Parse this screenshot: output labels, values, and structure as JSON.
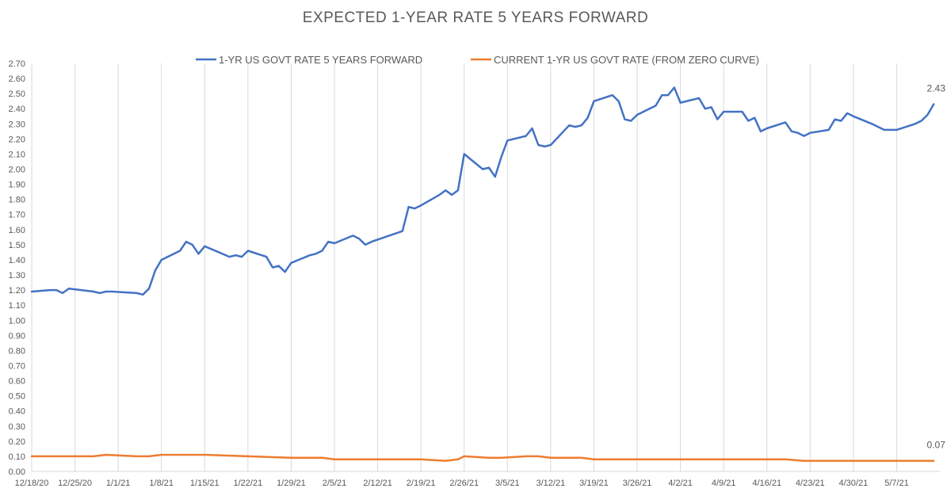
{
  "chart_data": {
    "type": "line",
    "title": "EXPECTED 1-YEAR RATE 5 YEARS FORWARD",
    "xlabel": "",
    "ylabel": "",
    "ylim": [
      0,
      2.7
    ],
    "ytick_step": 0.1,
    "x_range": [
      "2020-12-18",
      "2021-05-14"
    ],
    "grid": "vertical",
    "legend_position": "top",
    "x_tick_labels": [
      "12/18/20",
      "12/25/20",
      "1/1/21",
      "1/8/21",
      "1/15/21",
      "1/22/21",
      "1/29/21",
      "2/5/21",
      "2/12/21",
      "2/19/21",
      "2/26/21",
      "3/5/21",
      "3/12/21",
      "3/19/21",
      "3/26/21",
      "4/2/21",
      "4/9/21",
      "4/16/21",
      "4/23/21",
      "4/30/21",
      "5/7/21"
    ],
    "series": [
      {
        "name": "1-YR US GOVT RATE 5 YEARS FORWARD",
        "color": "#4472C4",
        "end_label": "2.43",
        "points": [
          [
            "2020-12-18",
            1.19
          ],
          [
            "2020-12-21",
            1.2
          ],
          [
            "2020-12-22",
            1.2
          ],
          [
            "2020-12-23",
            1.18
          ],
          [
            "2020-12-24",
            1.21
          ],
          [
            "2020-12-28",
            1.19
          ],
          [
            "2020-12-29",
            1.18
          ],
          [
            "2020-12-30",
            1.19
          ],
          [
            "2020-12-31",
            1.19
          ],
          [
            "2021-01-04",
            1.18
          ],
          [
            "2021-01-05",
            1.17
          ],
          [
            "2021-01-06",
            1.21
          ],
          [
            "2021-01-07",
            1.33
          ],
          [
            "2021-01-08",
            1.4
          ],
          [
            "2021-01-11",
            1.46
          ],
          [
            "2021-01-12",
            1.52
          ],
          [
            "2021-01-13",
            1.5
          ],
          [
            "2021-01-14",
            1.44
          ],
          [
            "2021-01-15",
            1.49
          ],
          [
            "2021-01-19",
            1.42
          ],
          [
            "2021-01-20",
            1.43
          ],
          [
            "2021-01-21",
            1.42
          ],
          [
            "2021-01-22",
            1.46
          ],
          [
            "2021-01-25",
            1.42
          ],
          [
            "2021-01-26",
            1.35
          ],
          [
            "2021-01-27",
            1.36
          ],
          [
            "2021-01-28",
            1.32
          ],
          [
            "2021-01-29",
            1.38
          ],
          [
            "2021-02-01",
            1.43
          ],
          [
            "2021-02-02",
            1.44
          ],
          [
            "2021-02-03",
            1.46
          ],
          [
            "2021-02-04",
            1.52
          ],
          [
            "2021-02-05",
            1.51
          ],
          [
            "2021-02-08",
            1.56
          ],
          [
            "2021-02-09",
            1.54
          ],
          [
            "2021-02-10",
            1.5
          ],
          [
            "2021-02-11",
            1.52
          ],
          [
            "2021-02-16",
            1.59
          ],
          [
            "2021-02-17",
            1.75
          ],
          [
            "2021-02-18",
            1.74
          ],
          [
            "2021-02-19",
            1.76
          ],
          [
            "2021-02-22",
            1.83
          ],
          [
            "2021-02-23",
            1.86
          ],
          [
            "2021-02-24",
            1.83
          ],
          [
            "2021-02-25",
            1.86
          ],
          [
            "2021-02-26",
            2.1
          ],
          [
            "2021-03-01",
            2.0
          ],
          [
            "2021-03-02",
            2.01
          ],
          [
            "2021-03-03",
            1.95
          ],
          [
            "2021-03-04",
            2.08
          ],
          [
            "2021-03-05",
            2.19
          ],
          [
            "2021-03-08",
            2.22
          ],
          [
            "2021-03-09",
            2.27
          ],
          [
            "2021-03-10",
            2.16
          ],
          [
            "2021-03-11",
            2.15
          ],
          [
            "2021-03-12",
            2.16
          ],
          [
            "2021-03-15",
            2.29
          ],
          [
            "2021-03-16",
            2.28
          ],
          [
            "2021-03-17",
            2.29
          ],
          [
            "2021-03-18",
            2.34
          ],
          [
            "2021-03-19",
            2.45
          ],
          [
            "2021-03-22",
            2.49
          ],
          [
            "2021-03-23",
            2.45
          ],
          [
            "2021-03-24",
            2.33
          ],
          [
            "2021-03-25",
            2.32
          ],
          [
            "2021-03-26",
            2.36
          ],
          [
            "2021-03-29",
            2.42
          ],
          [
            "2021-03-30",
            2.49
          ],
          [
            "2021-03-31",
            2.49
          ],
          [
            "2021-04-01",
            2.54
          ],
          [
            "2021-04-02",
            2.44
          ],
          [
            "2021-04-05",
            2.47
          ],
          [
            "2021-04-06",
            2.4
          ],
          [
            "2021-04-07",
            2.41
          ],
          [
            "2021-04-08",
            2.33
          ],
          [
            "2021-04-09",
            2.38
          ],
          [
            "2021-04-12",
            2.38
          ],
          [
            "2021-04-13",
            2.32
          ],
          [
            "2021-04-14",
            2.34
          ],
          [
            "2021-04-15",
            2.25
          ],
          [
            "2021-04-16",
            2.27
          ],
          [
            "2021-04-19",
            2.31
          ],
          [
            "2021-04-20",
            2.25
          ],
          [
            "2021-04-21",
            2.24
          ],
          [
            "2021-04-22",
            2.22
          ],
          [
            "2021-04-23",
            2.24
          ],
          [
            "2021-04-26",
            2.26
          ],
          [
            "2021-04-27",
            2.33
          ],
          [
            "2021-04-28",
            2.32
          ],
          [
            "2021-04-29",
            2.37
          ],
          [
            "2021-04-30",
            2.35
          ],
          [
            "2021-05-03",
            2.3
          ],
          [
            "2021-05-04",
            2.28
          ],
          [
            "2021-05-05",
            2.26
          ],
          [
            "2021-05-06",
            2.26
          ],
          [
            "2021-05-07",
            2.26
          ],
          [
            "2021-05-10",
            2.3
          ],
          [
            "2021-05-11",
            2.32
          ],
          [
            "2021-05-12",
            2.36
          ],
          [
            "2021-05-13",
            2.43
          ]
        ]
      },
      {
        "name": "CURRENT 1-YR US GOVT RATE (FROM ZERO CURVE)",
        "color": "#ED7D31",
        "end_label": "0.07",
        "points": [
          [
            "2020-12-18",
            0.1
          ],
          [
            "2020-12-21",
            0.1
          ],
          [
            "2020-12-23",
            0.1
          ],
          [
            "2020-12-28",
            0.1
          ],
          [
            "2020-12-30",
            0.11
          ],
          [
            "2021-01-04",
            0.1
          ],
          [
            "2021-01-06",
            0.1
          ],
          [
            "2021-01-08",
            0.11
          ],
          [
            "2021-01-12",
            0.11
          ],
          [
            "2021-01-15",
            0.11
          ],
          [
            "2021-01-22",
            0.1
          ],
          [
            "2021-01-29",
            0.09
          ],
          [
            "2021-02-03",
            0.09
          ],
          [
            "2021-02-05",
            0.08
          ],
          [
            "2021-02-10",
            0.08
          ],
          [
            "2021-02-16",
            0.08
          ],
          [
            "2021-02-19",
            0.08
          ],
          [
            "2021-02-23",
            0.07
          ],
          [
            "2021-02-25",
            0.08
          ],
          [
            "2021-02-26",
            0.1
          ],
          [
            "2021-03-02",
            0.09
          ],
          [
            "2021-03-04",
            0.09
          ],
          [
            "2021-03-08",
            0.1
          ],
          [
            "2021-03-10",
            0.1
          ],
          [
            "2021-03-12",
            0.09
          ],
          [
            "2021-03-17",
            0.09
          ],
          [
            "2021-03-19",
            0.08
          ],
          [
            "2021-03-24",
            0.08
          ],
          [
            "2021-03-31",
            0.08
          ],
          [
            "2021-04-05",
            0.08
          ],
          [
            "2021-04-09",
            0.08
          ],
          [
            "2021-04-14",
            0.08
          ],
          [
            "2021-04-19",
            0.08
          ],
          [
            "2021-04-22",
            0.07
          ],
          [
            "2021-04-27",
            0.07
          ],
          [
            "2021-04-30",
            0.07
          ],
          [
            "2021-05-05",
            0.07
          ],
          [
            "2021-05-10",
            0.07
          ],
          [
            "2021-05-13",
            0.07
          ]
        ]
      }
    ]
  }
}
